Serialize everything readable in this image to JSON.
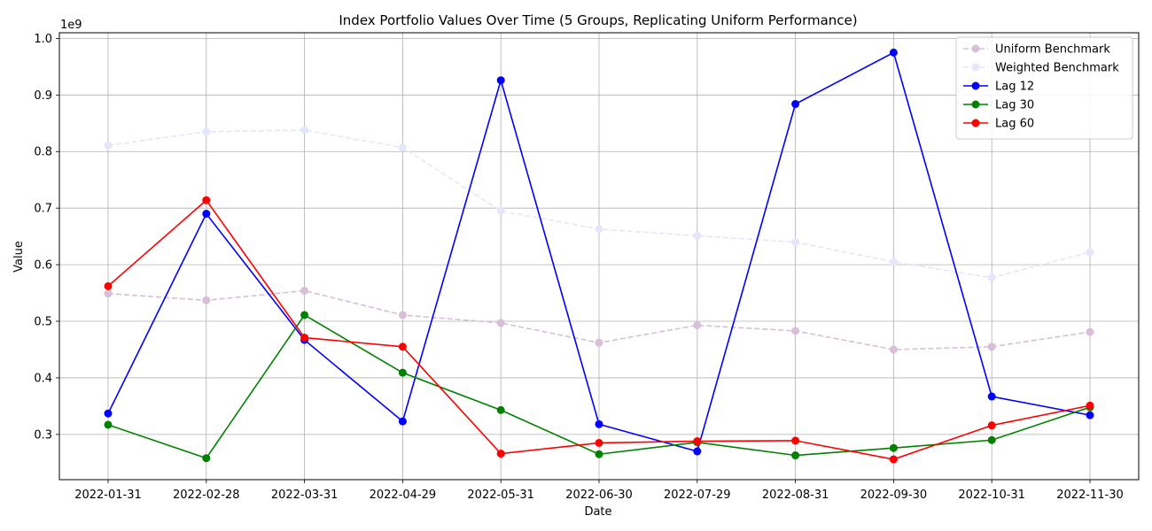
{
  "chart_data": {
    "type": "line",
    "title": "Index Portfolio Values Over Time (5 Groups, Replicating Uniform Performance)",
    "xlabel": "Date",
    "ylabel": "Value",
    "y_offset_label": "1e9",
    "categories": [
      "2022-01-31",
      "2022-02-28",
      "2022-03-31",
      "2022-04-29",
      "2022-05-31",
      "2022-06-30",
      "2022-07-29",
      "2022-08-31",
      "2022-09-30",
      "2022-10-31",
      "2022-11-30"
    ],
    "yticks": [
      "0.3",
      "0.4",
      "0.5",
      "0.6",
      "0.7",
      "0.8",
      "0.9",
      "1.0"
    ],
    "ylim": [
      0.22,
      1.01
    ],
    "grid": true,
    "legend_position": "top-right",
    "series": [
      {
        "name": "Uniform Benchmark",
        "color": "#d8bfd8",
        "dashed": true,
        "values": [
          0.549,
          0.537,
          0.554,
          0.511,
          0.497,
          0.462,
          0.493,
          0.483,
          0.45,
          0.455,
          0.481
        ]
      },
      {
        "name": "Weighted Benchmark",
        "color": "#e6e6fa",
        "dashed": true,
        "values": [
          0.811,
          0.835,
          0.838,
          0.807,
          0.695,
          0.663,
          0.651,
          0.64,
          0.605,
          0.577,
          0.622
        ]
      },
      {
        "name": "Lag 12",
        "color": "#0000ff",
        "dashed": false,
        "values": [
          0.337,
          0.69,
          0.467,
          0.323,
          0.926,
          0.318,
          0.27,
          0.884,
          0.975,
          0.367,
          0.334
        ]
      },
      {
        "name": "Lag 30",
        "color": "#008000",
        "dashed": false,
        "values": [
          0.317,
          0.258,
          0.511,
          0.409,
          0.343,
          0.265,
          0.286,
          0.263,
          0.276,
          0.29,
          0.348
        ]
      },
      {
        "name": "Lag 60",
        "color": "#ff0000",
        "dashed": false,
        "values": [
          0.562,
          0.714,
          0.471,
          0.455,
          0.266,
          0.285,
          0.288,
          0.289,
          0.256,
          0.316,
          0.351
        ]
      }
    ]
  }
}
